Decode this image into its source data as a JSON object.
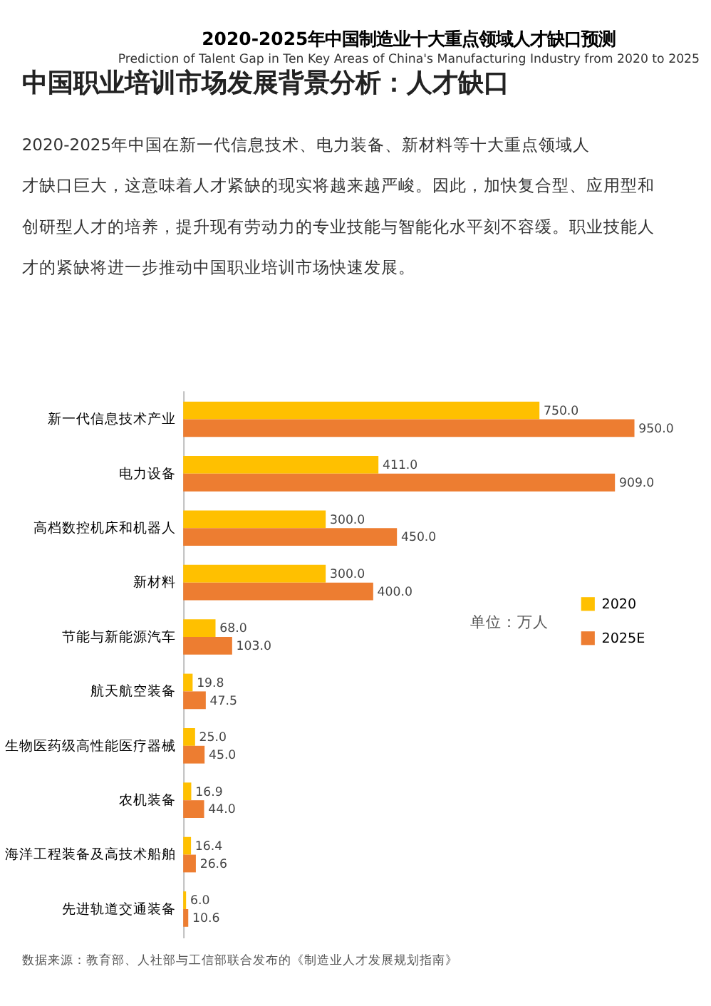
{
  "chart_data": {
    "type": "bar",
    "orientation": "horizontal",
    "title": "中国职业培训市场发展背景分析：人才缺口",
    "subtitle": "2020-2025年中国在新一代信息技术、电力装备、新材料等十大重点领域人才缺口巨大，这意味着人才紧缺的现实将越来越严峻。因此，加快复合型、应用型和创研型人才的培养，提升现有劳动力的专业技能与智能化水平刻不容缓。职业技能人才的紧缺将进一步推动中国职业培训市场快速发展。",
    "annotations": [
      "2020-2025年中国制造业十大重点领域人才缺口预测",
      "Prediction of Talent Gap in Ten Key Areas of China's Manufacturing Industry from 2020 to 2025",
      "单位：万人",
      "数据来源：教育部、人社部与工信部联合发布的《制造业人才发展规划指南》"
    ],
    "categories": [
      "新一代信息技术产业",
      "电力设备",
      "高档数控机床和机器人",
      "新材料",
      "节能与新能源汽车",
      "航天航空装备",
      "生物医药级高性能医疗器械",
      "农机装备",
      "海洋工程装备及高技术船舶",
      "先进轨道交通装备"
    ],
    "series": [
      {
        "name": "2020",
        "color": "#ffc000",
        "values": [
          750.0,
          411.0,
          300.0,
          300.0,
          68.0,
          19.8,
          25.0,
          16.9,
          16.4,
          6.0
        ],
        "value_labels": [
          "750.0",
          "411.0",
          "300.0",
          "300.0",
          "68.0",
          "19.8",
          "25.0",
          "16.9",
          "16.4",
          "6.0"
        ]
      },
      {
        "name": "2025E",
        "color": "#ed7d31",
        "values": [
          950.0,
          909.0,
          450.0,
          400.0,
          103.0,
          47.5,
          45.0,
          44.0,
          26.6,
          10.6
        ],
        "value_labels": [
          "950.0",
          "909.0",
          "450.0",
          "400.0",
          "103.0",
          "47.5",
          "45.0",
          "44.0",
          "26.6",
          "10.6"
        ]
      }
    ],
    "legend": "right"
  }
}
